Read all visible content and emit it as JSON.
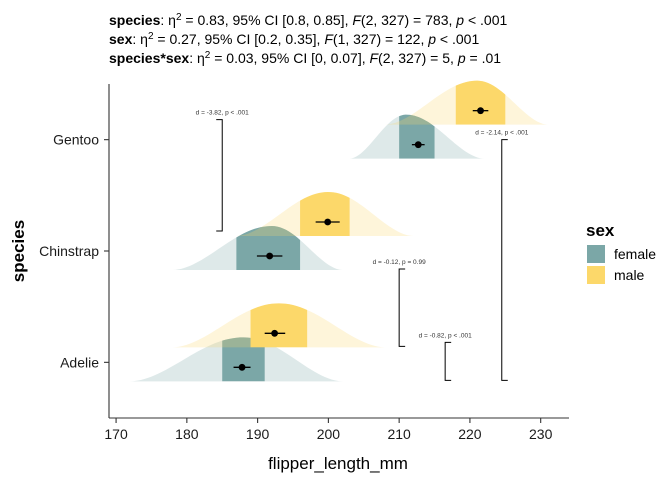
{
  "chart_data": {
    "type": "raincloud",
    "subtitle_lines": [
      [
        {
          "t": "species",
          "b": true
        },
        {
          "t": ": η"
        },
        {
          "t": "2",
          "sup": true
        },
        {
          "t": " = 0.83, 95% CI [0.8, 0.85], "
        },
        {
          "t": "F",
          "i": true
        },
        {
          "t": "(2, 327) = 783, "
        },
        {
          "t": "p",
          "i": true
        },
        {
          "t": " < .001"
        }
      ],
      [
        {
          "t": "sex",
          "b": true
        },
        {
          "t": ": η"
        },
        {
          "t": "2",
          "sup": true
        },
        {
          "t": " = 0.27, 95% CI [0.2, 0.35], "
        },
        {
          "t": "F",
          "i": true
        },
        {
          "t": "(1, 327) = 122, "
        },
        {
          "t": "p",
          "i": true
        },
        {
          "t": " < .001"
        }
      ],
      [
        {
          "t": "species*sex",
          "b": true
        },
        {
          "t": ": η"
        },
        {
          "t": "2",
          "sup": true
        },
        {
          "t": " = 0.03, 95% CI [0, 0.07], "
        },
        {
          "t": "F",
          "i": true
        },
        {
          "t": "(2, 327) = 5, "
        },
        {
          "t": "p",
          "i": true
        },
        {
          "t": " = .01"
        }
      ]
    ],
    "xlabel": "flipper_length_mm",
    "ylabel": "species",
    "xlim": [
      169,
      234
    ],
    "xticks": [
      170,
      180,
      190,
      200,
      210,
      220,
      230
    ],
    "categories": [
      "Adelie",
      "Chinstrap",
      "Gentoo"
    ],
    "legend": {
      "title": "sex",
      "position": "right",
      "items": [
        {
          "label": "female",
          "color": "#7ba7a7"
        },
        {
          "label": "male",
          "color": "#fcd86a"
        }
      ]
    },
    "groups": [
      {
        "species": "Adelie",
        "sex": "female",
        "min": 172,
        "max": 202,
        "mean": 187.8,
        "ci": [
          186.6,
          189.0
        ],
        "iqr": [
          185,
          191
        ],
        "peak": 188
      },
      {
        "species": "Adelie",
        "sex": "male",
        "min": 178,
        "max": 208,
        "mean": 192.4,
        "ci": [
          191.0,
          193.9
        ],
        "iqr": [
          189,
          197
        ],
        "peak": 193
      },
      {
        "species": "Chinstrap",
        "sex": "female",
        "min": 178,
        "max": 202,
        "mean": 191.7,
        "ci": [
          189.9,
          193.5
        ],
        "iqr": [
          187,
          196
        ],
        "peak": 192
      },
      {
        "species": "Chinstrap",
        "sex": "male",
        "min": 187,
        "max": 212,
        "mean": 199.9,
        "ci": [
          198.2,
          201.6
        ],
        "iqr": [
          196,
          203
        ],
        "peak": 200
      },
      {
        "species": "Gentoo",
        "sex": "female",
        "min": 203,
        "max": 222,
        "mean": 212.7,
        "ci": [
          211.8,
          213.6
        ],
        "iqr": [
          210,
          215
        ],
        "peak": 211
      },
      {
        "species": "Gentoo",
        "sex": "male",
        "min": 208,
        "max": 231,
        "mean": 221.5,
        "ci": [
          220.4,
          222.6
        ],
        "iqr": [
          218,
          225
        ],
        "peak": 221
      }
    ],
    "annotations": [
      {
        "text": "d = -3.82, p < .001",
        "between": [
          "Chinstrap",
          "Gentoo"
        ],
        "x": 185
      },
      {
        "text": "d = -0.12, p = 0.99",
        "between": [
          "Adelie",
          "Chinstrap"
        ],
        "x": 210
      },
      {
        "text": "d = -0.82, p < .001",
        "between": [
          "Adelie",
          "Adelie"
        ],
        "x": 216.5
      },
      {
        "text": "d = -2.14, p < .001",
        "between": [
          "Adelie",
          "Gentoo"
        ],
        "x": 224.5
      }
    ]
  }
}
